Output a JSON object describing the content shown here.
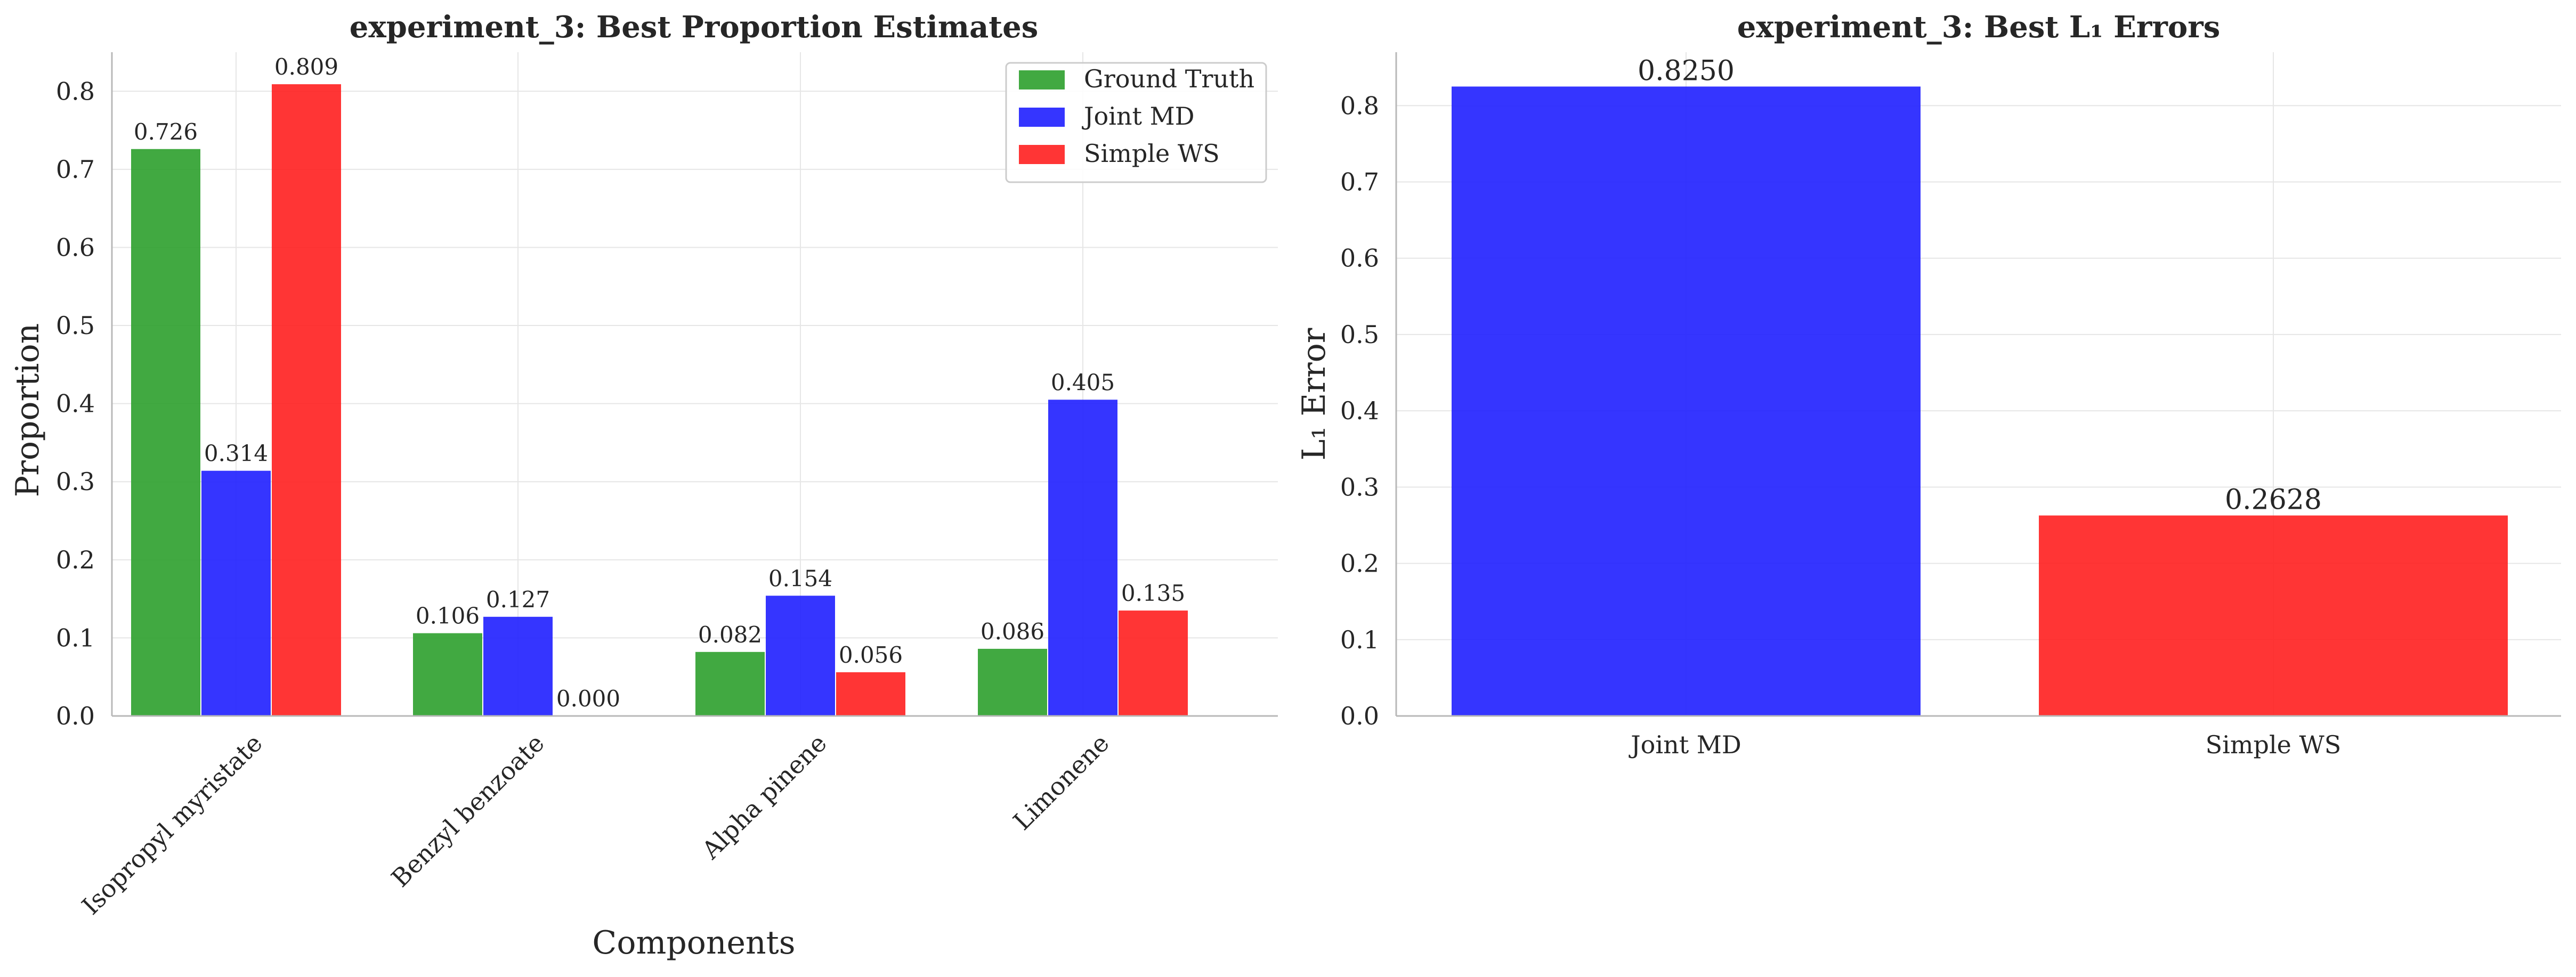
{
  "chart_data": [
    {
      "type": "bar",
      "title": "experiment_3: Best Proportion Estimates",
      "xlabel": "Components",
      "ylabel": "Proportion",
      "categories": [
        "Isopropyl myristate",
        "Benzyl benzoate",
        "Alpha pinene",
        "Limonene"
      ],
      "series": [
        {
          "name": "Ground Truth",
          "color": "#2ca02c",
          "values": [
            0.726,
            0.106,
            0.082,
            0.086
          ],
          "labels": [
            "0.726",
            "0.106",
            "0.082",
            "0.086"
          ]
        },
        {
          "name": "Joint MD",
          "color": "#1f1fff",
          "values": [
            0.314,
            0.127,
            0.154,
            0.405
          ],
          "labels": [
            "0.314",
            "0.127",
            "0.154",
            "0.405"
          ]
        },
        {
          "name": "Simple WS",
          "color": "#ff1f1f",
          "values": [
            0.809,
            0.0,
            0.056,
            0.135
          ],
          "labels": [
            "0.809",
            "0.000",
            "0.056",
            "0.135"
          ]
        }
      ],
      "ylim": [
        0,
        0.85
      ],
      "yticks": [
        "0.0",
        "0.1",
        "0.2",
        "0.3",
        "0.4",
        "0.5",
        "0.6",
        "0.7",
        "0.8"
      ],
      "legend": "top-right",
      "grid": true
    },
    {
      "type": "bar",
      "title": "experiment_3: Best L₁ Errors",
      "xlabel": "",
      "ylabel": "L₁ Error",
      "categories": [
        "Joint MD",
        "Simple WS"
      ],
      "values": [
        0.825,
        0.2628
      ],
      "labels": [
        "0.8250",
        "0.2628"
      ],
      "colors": [
        "#1f1fff",
        "#ff1f1f"
      ],
      "ylim": [
        0,
        0.87
      ],
      "yticks": [
        "0.0",
        "0.1",
        "0.2",
        "0.3",
        "0.4",
        "0.5",
        "0.6",
        "0.7",
        "0.8"
      ],
      "grid": true
    }
  ]
}
